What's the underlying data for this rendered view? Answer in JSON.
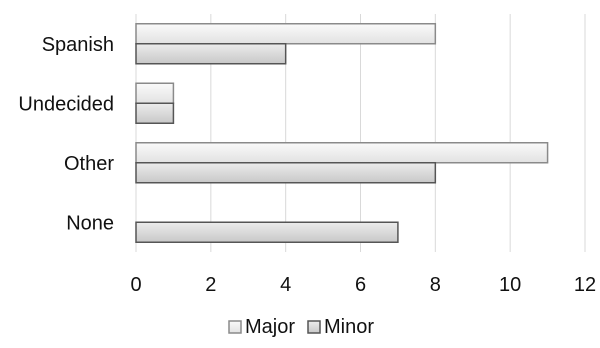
{
  "chart_data": {
    "type": "bar",
    "orientation": "horizontal",
    "categories": [
      "Spanish",
      "Undecided",
      "Other",
      "None"
    ],
    "series": [
      {
        "name": "Major",
        "values": [
          8,
          1,
          11,
          0
        ],
        "color": "#eeeeee"
      },
      {
        "name": "Minor",
        "values": [
          4,
          1,
          8,
          7
        ],
        "color": "#d9d9d9"
      }
    ],
    "xlim": [
      0,
      12
    ],
    "x_ticks": [
      0,
      2,
      4,
      6,
      8,
      10,
      12
    ],
    "grid": true,
    "legend_position": "bottom"
  }
}
